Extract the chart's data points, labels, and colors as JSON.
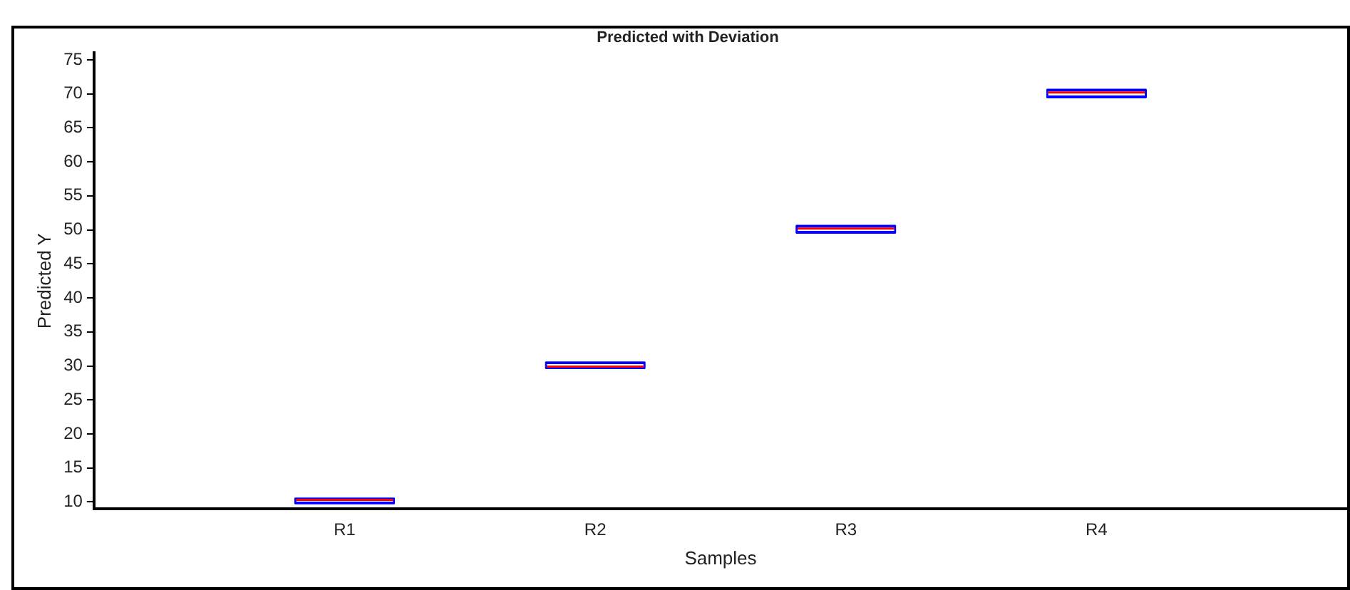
{
  "chart_data": {
    "type": "box",
    "title": "Predicted with Deviation",
    "xlabel": "Samples",
    "ylabel": "Predicted Y",
    "categories": [
      "R1",
      "R2",
      "R3",
      "R4"
    ],
    "boxes": [
      {
        "low": 9.8,
        "q1": 9.8,
        "median": 10.3,
        "q3": 10.5,
        "high": 10.5
      },
      {
        "low": 29.7,
        "q1": 29.7,
        "median": 29.9,
        "q3": 30.5,
        "high": 30.5
      },
      {
        "low": 49.6,
        "q1": 49.6,
        "median": 50.2,
        "q3": 50.6,
        "high": 50.6
      },
      {
        "low": 69.5,
        "q1": 69.5,
        "median": 70.2,
        "q3": 70.6,
        "high": 70.6
      }
    ],
    "color": "#0000ff",
    "ylim": [
      9,
      76
    ],
    "yticks": [
      10,
      15,
      20,
      25,
      30,
      35,
      40,
      45,
      50,
      55,
      60,
      65,
      70,
      75
    ],
    "grid": false,
    "legend": false
  }
}
